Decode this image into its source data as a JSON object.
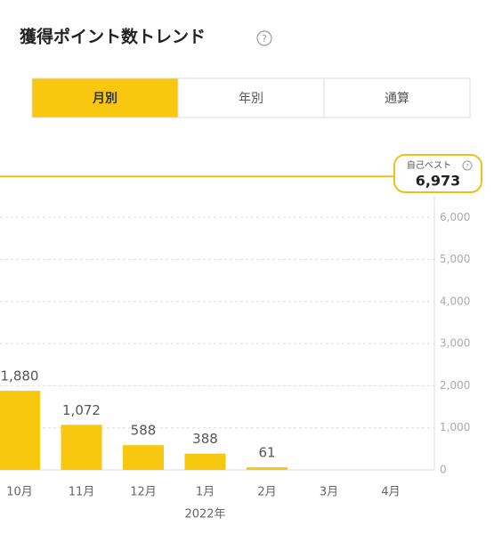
{
  "header": {
    "title": "獲得ポイント数トレンド",
    "help": "?"
  },
  "tabs": [
    {
      "label": "月別",
      "selected": true
    },
    {
      "label": "年別",
      "selected": false
    },
    {
      "label": "通算",
      "selected": false
    }
  ],
  "chart_data": {
    "type": "bar",
    "categories": [
      "10月",
      "11月",
      "12月",
      "1月",
      "2月",
      "3月",
      "4月"
    ],
    "values": [
      1880,
      1072,
      588,
      388,
      61,
      null,
      null
    ],
    "value_labels": [
      "1,880",
      "1,072",
      "588",
      "388",
      "61",
      null,
      null
    ],
    "year_label": "2022年",
    "color": "#f8c70f",
    "ylim": [
      0,
      7000
    ],
    "yticks": [
      0,
      {
        "value": 1000,
        "label": "1,000"
      },
      {
        "value": 2000,
        "label": "2,000"
      },
      {
        "value": 3000,
        "label": "3,000"
      },
      {
        "value": 4000,
        "label": "4,000"
      },
      {
        "value": 5000,
        "label": "5,000"
      },
      {
        "value": 6000,
        "label": "6,000"
      }
    ],
    "grid": true,
    "best": {
      "label": "自己ベスト",
      "help": "?",
      "value": 6973,
      "value_label": "6,973",
      "color": "#e9c31c"
    }
  }
}
